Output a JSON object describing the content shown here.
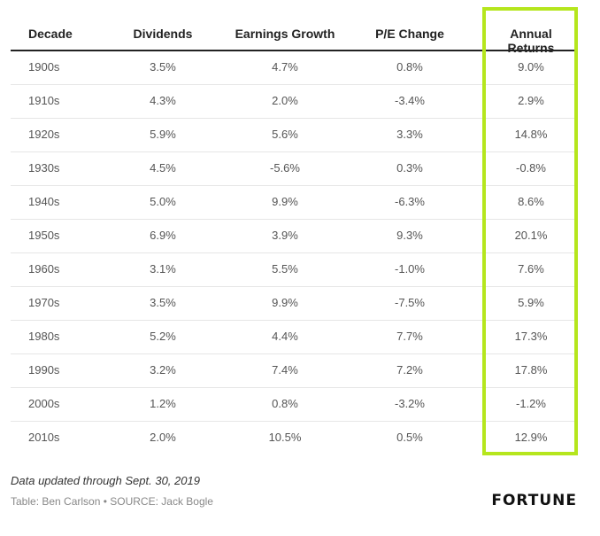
{
  "chart_data": {
    "type": "table",
    "columns": [
      "Decade",
      "Dividends",
      "Earnings Growth",
      "P/E Change",
      "Annual Returns"
    ],
    "rows": [
      [
        "1900s",
        "3.5%",
        "4.7%",
        "0.8%",
        "9.0%"
      ],
      [
        "1910s",
        "4.3%",
        "2.0%",
        "-3.4%",
        "2.9%"
      ],
      [
        "1920s",
        "5.9%",
        "5.6%",
        "3.3%",
        "14.8%"
      ],
      [
        "1930s",
        "4.5%",
        "-5.6%",
        "0.3%",
        "-0.8%"
      ],
      [
        "1940s",
        "5.0%",
        "9.9%",
        "-6.3%",
        "8.6%"
      ],
      [
        "1950s",
        "6.9%",
        "3.9%",
        "9.3%",
        "20.1%"
      ],
      [
        "1960s",
        "3.1%",
        "5.5%",
        "-1.0%",
        "7.6%"
      ],
      [
        "1970s",
        "3.5%",
        "9.9%",
        "-7.5%",
        "5.9%"
      ],
      [
        "1980s",
        "5.2%",
        "4.4%",
        "7.7%",
        "17.3%"
      ],
      [
        "1990s",
        "3.2%",
        "7.4%",
        "7.2%",
        "17.8%"
      ],
      [
        "2000s",
        "1.2%",
        "0.8%",
        "-3.2%",
        "-1.2%"
      ],
      [
        "2010s",
        "2.0%",
        "10.5%",
        "0.5%",
        "12.9%"
      ]
    ],
    "highlight_column": "Annual Returns",
    "highlight_color": "#b5e61d"
  },
  "footer": {
    "note": "Data updated through Sept. 30, 2019",
    "credit": "Table: Ben Carlson • SOURCE: Jack Bogle",
    "logo": "FORTUNE"
  }
}
